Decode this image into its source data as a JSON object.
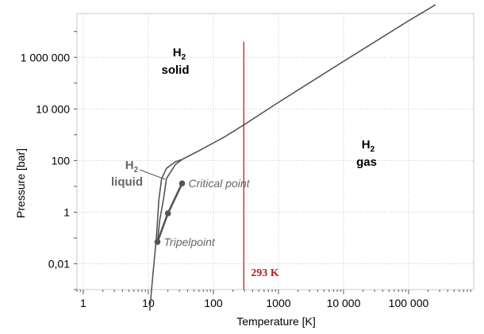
{
  "chart_data": {
    "type": "line",
    "xlabel": "Temperature [K]",
    "ylabel": "Pressure [bar]",
    "x_scale": "log",
    "y_scale": "log",
    "xlim": [
      0.8,
      1000000
    ],
    "ylim": [
      0.001,
      50000000
    ],
    "grid": true,
    "x_ticks": [
      {
        "value": 1,
        "label": "1"
      },
      {
        "value": 10,
        "label": "10"
      },
      {
        "value": 100,
        "label": "100"
      },
      {
        "value": 1000,
        "label": "1000"
      },
      {
        "value": 10000,
        "label": "10 000"
      },
      {
        "value": 100000,
        "label": "100 000"
      }
    ],
    "y_ticks": [
      {
        "value": 0.01,
        "label": "0,01"
      },
      {
        "value": 1,
        "label": "1"
      },
      {
        "value": 100,
        "label": "100"
      },
      {
        "value": 10000,
        "label": "10 000"
      },
      {
        "value": 1000000,
        "label": "1 000 000"
      }
    ],
    "series": [
      {
        "color": "#555555",
        "points": [
          [
            13.8,
            0.07
          ],
          [
            20,
            0.9
          ],
          [
            33,
            13
          ]
        ]
      },
      {
        "color": "#555555",
        "points": [
          [
            10.5,
            0.00015
          ],
          [
            11.5,
            0.002
          ],
          [
            12.5,
            0.02
          ],
          [
            13.3,
            0.1
          ],
          [
            13.8,
            0.4
          ],
          [
            14.5,
            3
          ],
          [
            16,
            20
          ],
          [
            19,
            50
          ],
          [
            26,
            90
          ],
          [
            33,
            110
          ],
          [
            60,
            240
          ],
          [
            150,
            840
          ],
          [
            300,
            2500
          ],
          [
            1000,
            18000
          ],
          [
            10000,
            700000
          ],
          [
            100000,
            26000000
          ],
          [
            260000,
            110000000
          ]
        ]
      },
      {
        "color": "#555555",
        "points": [
          [
            13.8,
            0.07
          ],
          [
            15,
            0.5
          ],
          [
            17,
            3
          ],
          [
            19,
            20
          ],
          [
            26,
            70
          ],
          [
            33,
            110
          ]
        ]
      }
    ],
    "points": [
      {
        "name": "Tripelpoint",
        "x": 13.8,
        "y": 0.07
      },
      {
        "name": "Critical point",
        "x": 33,
        "y": 13
      },
      {
        "name": "",
        "x": 20,
        "y": 0.9
      }
    ],
    "vertical_marker": {
      "x": 293,
      "label": "293 K",
      "color": "#b22222",
      "y_top": 4000000
    },
    "regions": [
      {
        "line1": "H",
        "sub": "2",
        "line2": "solid"
      },
      {
        "line1": "H",
        "sub": "2",
        "line2": "gas"
      },
      {
        "line1": "H",
        "sub": "2",
        "line2": "liquid"
      }
    ]
  }
}
